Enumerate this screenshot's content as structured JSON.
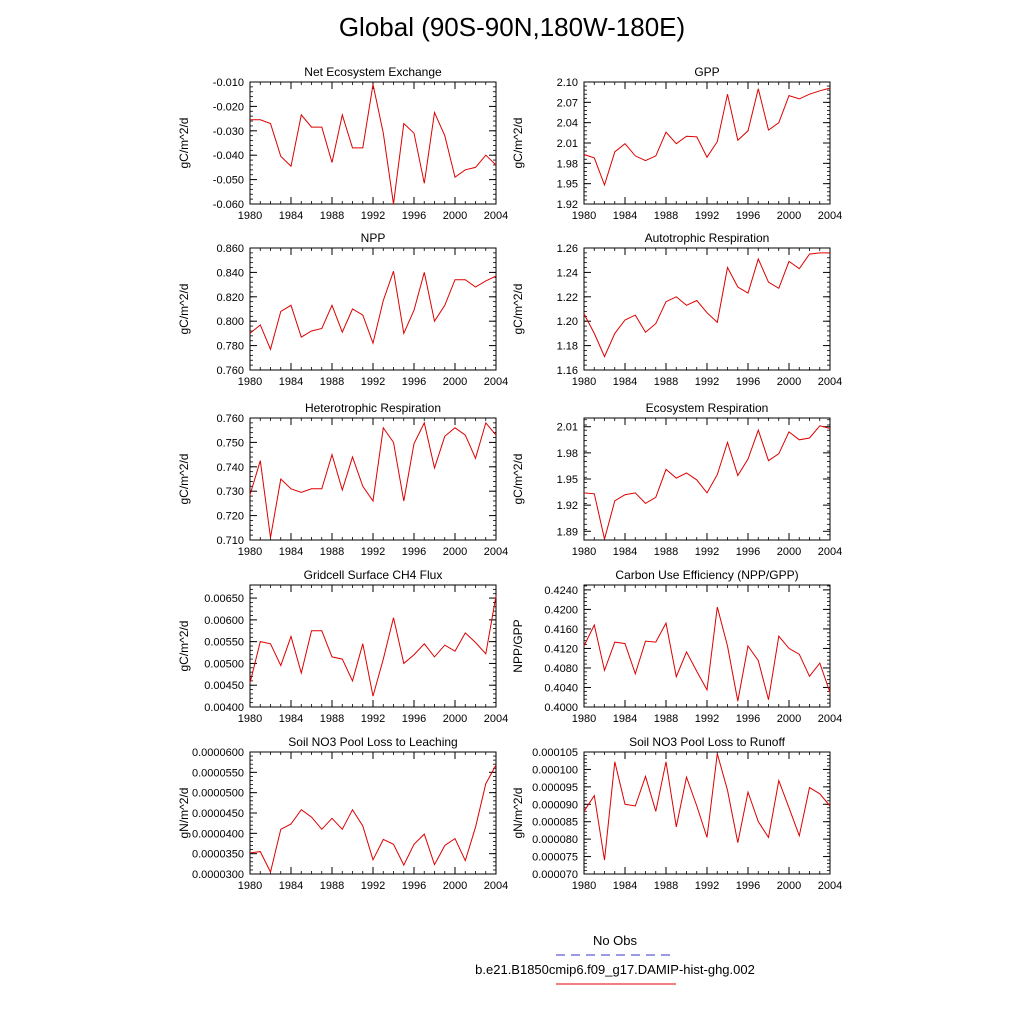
{
  "page": {
    "title": "Global (90S-90N,180W-180E)"
  },
  "legend": {
    "obs_label": "No Obs",
    "obs_color": "#3333cc",
    "model_label": "b.e21.B1850cmip6.f09_g17.DAMIP-hist-ghg.002",
    "model_color": "#dd0000"
  },
  "chart_data": [
    {
      "type": "line",
      "title": "Net Ecosystem Exchange",
      "ylabel": "gC/m^2/d",
      "xlim": [
        1980,
        2004
      ],
      "ylim": [
        -0.06,
        -0.01
      ],
      "xticks": [
        1980,
        1984,
        1988,
        1992,
        1996,
        2000,
        2004
      ],
      "yticks": [
        "-0.060",
        "-0.050",
        "-0.040",
        "-0.030",
        "-0.020",
        "-0.010"
      ],
      "x": [
        1980,
        1981,
        1982,
        1983,
        1984,
        1985,
        1986,
        1987,
        1988,
        1989,
        1990,
        1991,
        1992,
        1993,
        1994,
        1995,
        1996,
        1997,
        1998,
        1999,
        2000,
        2001,
        2002,
        2003,
        2004
      ],
      "series": [
        {
          "values": [
            -0.0255,
            -0.0255,
            -0.027,
            -0.0405,
            -0.0445,
            -0.0235,
            -0.0285,
            -0.0285,
            -0.043,
            -0.0235,
            -0.037,
            -0.037,
            -0.011,
            -0.031,
            -0.06,
            -0.027,
            -0.031,
            -0.0515,
            -0.0225,
            -0.032,
            -0.049,
            -0.046,
            -0.045,
            -0.04,
            -0.044
          ]
        }
      ]
    },
    {
      "type": "line",
      "title": "GPP",
      "ylabel": "gC/m^2/d",
      "xlim": [
        1980,
        2004
      ],
      "ylim": [
        1.92,
        2.1
      ],
      "xticks": [
        1980,
        1984,
        1988,
        1992,
        1996,
        2000,
        2004
      ],
      "yticks": [
        "1.92",
        "1.95",
        "1.98",
        "2.01",
        "2.04",
        "2.07",
        "2.10"
      ],
      "x": [
        1980,
        1981,
        1982,
        1983,
        1984,
        1985,
        1986,
        1987,
        1988,
        1989,
        1990,
        1991,
        1992,
        1993,
        1994,
        1995,
        1996,
        1997,
        1998,
        1999,
        2000,
        2001,
        2002,
        2003,
        2004
      ],
      "series": [
        {
          "values": [
            1.993,
            1.988,
            1.948,
            1.997,
            2.009,
            1.991,
            1.984,
            1.991,
            2.026,
            2.009,
            2.02,
            2.019,
            1.989,
            2.012,
            2.082,
            2.014,
            2.028,
            2.09,
            2.029,
            2.04,
            2.08,
            2.075,
            2.082,
            2.087,
            2.091
          ]
        }
      ]
    },
    {
      "type": "line",
      "title": "NPP",
      "ylabel": "gC/m^2/d",
      "xlim": [
        1980,
        2004
      ],
      "ylim": [
        0.76,
        0.86
      ],
      "xticks": [
        1980,
        1984,
        1988,
        1992,
        1996,
        2000,
        2004
      ],
      "yticks": [
        "0.760",
        "0.780",
        "0.800",
        "0.820",
        "0.840",
        "0.860"
      ],
      "x": [
        1980,
        1981,
        1982,
        1983,
        1984,
        1985,
        1986,
        1987,
        1988,
        1989,
        1990,
        1991,
        1992,
        1993,
        1994,
        1995,
        1996,
        1997,
        1998,
        1999,
        2000,
        2001,
        2002,
        2003,
        2004
      ],
      "series": [
        {
          "values": [
            0.79,
            0.797,
            0.777,
            0.808,
            0.813,
            0.787,
            0.792,
            0.794,
            0.813,
            0.791,
            0.81,
            0.805,
            0.782,
            0.817,
            0.841,
            0.79,
            0.809,
            0.84,
            0.8,
            0.813,
            0.834,
            0.834,
            0.828,
            0.833,
            0.837
          ]
        }
      ]
    },
    {
      "type": "line",
      "title": "Autotrophic Respiration",
      "ylabel": "gC/m^2/d",
      "xlim": [
        1980,
        2004
      ],
      "ylim": [
        1.16,
        1.26
      ],
      "xticks": [
        1980,
        1984,
        1988,
        1992,
        1996,
        2000,
        2004
      ],
      "yticks": [
        "1.16",
        "1.18",
        "1.20",
        "1.22",
        "1.24",
        "1.26"
      ],
      "x": [
        1980,
        1981,
        1982,
        1983,
        1984,
        1985,
        1986,
        1987,
        1988,
        1989,
        1990,
        1991,
        1992,
        1993,
        1994,
        1995,
        1996,
        1997,
        1998,
        1999,
        2000,
        2001,
        2002,
        2003,
        2004
      ],
      "series": [
        {
          "values": [
            1.206,
            1.19,
            1.171,
            1.19,
            1.201,
            1.205,
            1.191,
            1.198,
            1.216,
            1.22,
            1.213,
            1.217,
            1.207,
            1.199,
            1.244,
            1.228,
            1.223,
            1.251,
            1.232,
            1.227,
            1.249,
            1.243,
            1.255,
            1.256,
            1.256
          ]
        }
      ]
    },
    {
      "type": "line",
      "title": "Heterotrophic Respiration",
      "ylabel": "gC/m^2/d",
      "xlim": [
        1980,
        2004
      ],
      "ylim": [
        0.71,
        0.76
      ],
      "xticks": [
        1980,
        1984,
        1988,
        1992,
        1996,
        2000,
        2004
      ],
      "yticks": [
        "0.710",
        "0.720",
        "0.730",
        "0.740",
        "0.750",
        "0.760"
      ],
      "x": [
        1980,
        1981,
        1982,
        1983,
        1984,
        1985,
        1986,
        1987,
        1988,
        1989,
        1990,
        1991,
        1992,
        1993,
        1994,
        1995,
        1996,
        1997,
        1998,
        1999,
        2000,
        2001,
        2002,
        2003,
        2004
      ],
      "series": [
        {
          "values": [
            0.7285,
            0.7425,
            0.711,
            0.735,
            0.731,
            0.7295,
            0.731,
            0.731,
            0.745,
            0.7305,
            0.744,
            0.732,
            0.726,
            0.756,
            0.75,
            0.726,
            0.7495,
            0.758,
            0.7395,
            0.7525,
            0.756,
            0.753,
            0.7435,
            0.758,
            0.753
          ]
        }
      ]
    },
    {
      "type": "line",
      "title": "Ecosystem Respiration",
      "ylabel": "gC/m^2/d",
      "xlim": [
        1980,
        2004
      ],
      "ylim": [
        1.88,
        2.02
      ],
      "xticks": [
        1980,
        1984,
        1988,
        1992,
        1996,
        2000,
        2004
      ],
      "yticks": [
        "1.89",
        "1.92",
        "1.95",
        "1.98",
        "2.01"
      ],
      "x": [
        1980,
        1981,
        1982,
        1983,
        1984,
        1985,
        1986,
        1987,
        1988,
        1989,
        1990,
        1991,
        1992,
        1993,
        1994,
        1995,
        1996,
        1997,
        1998,
        1999,
        2000,
        2001,
        2002,
        2003,
        2004
      ],
      "series": [
        {
          "values": [
            1.934,
            1.933,
            1.881,
            1.925,
            1.932,
            1.934,
            1.922,
            1.929,
            1.961,
            1.951,
            1.957,
            1.949,
            1.934,
            1.955,
            1.992,
            1.954,
            1.973,
            2.006,
            1.971,
            1.979,
            2.004,
            1.995,
            1.997,
            2.011,
            2.008
          ]
        }
      ]
    },
    {
      "type": "line",
      "title": "Gridcell Surface CH4 Flux",
      "ylabel": "gC/m^2/d",
      "xlim": [
        1980,
        2004
      ],
      "ylim": [
        0.004,
        0.0068
      ],
      "xticks": [
        1980,
        1984,
        1988,
        1992,
        1996,
        2000,
        2004
      ],
      "yticks": [
        "0.00400",
        "0.00450",
        "0.00500",
        "0.00550",
        "0.00600",
        "0.00650"
      ],
      "x": [
        1980,
        1981,
        1982,
        1983,
        1984,
        1985,
        1986,
        1987,
        1988,
        1989,
        1990,
        1991,
        1992,
        1993,
        1994,
        1995,
        1996,
        1997,
        1998,
        1999,
        2000,
        2001,
        2002,
        2003,
        2004
      ],
      "series": [
        {
          "values": [
            0.00455,
            0.0055,
            0.00545,
            0.00495,
            0.00562,
            0.00478,
            0.00575,
            0.00575,
            0.00515,
            0.0051,
            0.0046,
            0.00545,
            0.00425,
            0.0051,
            0.00605,
            0.005,
            0.0052,
            0.00545,
            0.00515,
            0.00542,
            0.00528,
            0.0057,
            0.00548,
            0.00522,
            0.00655
          ]
        }
      ]
    },
    {
      "type": "line",
      "title": "Carbon Use Efficiency (NPP/GPP)",
      "ylabel": "NPP/GPP",
      "xlim": [
        1980,
        2004
      ],
      "ylim": [
        0.4,
        0.425
      ],
      "xticks": [
        1980,
        1984,
        1988,
        1992,
        1996,
        2000,
        2004
      ],
      "yticks": [
        "0.4000",
        "0.4040",
        "0.4080",
        "0.4120",
        "0.4160",
        "0.4200",
        "0.4240"
      ],
      "x": [
        1980,
        1981,
        1982,
        1983,
        1984,
        1985,
        1986,
        1987,
        1988,
        1989,
        1990,
        1991,
        1992,
        1993,
        1994,
        1995,
        1996,
        1997,
        1998,
        1999,
        2000,
        2001,
        2002,
        2003,
        2004
      ],
      "series": [
        {
          "values": [
            0.4125,
            0.4168,
            0.4075,
            0.4133,
            0.413,
            0.4068,
            0.4135,
            0.4133,
            0.4172,
            0.4062,
            0.4113,
            0.4073,
            0.4035,
            0.4205,
            0.4125,
            0.4012,
            0.4125,
            0.4095,
            0.4015,
            0.4145,
            0.412,
            0.4108,
            0.4063,
            0.409,
            0.403
          ]
        }
      ]
    },
    {
      "type": "line",
      "title": "Soil NO3 Pool Loss to Leaching",
      "ylabel": "gN/m^2/d",
      "xlim": [
        1980,
        2004
      ],
      "ylim": [
        3e-05,
        6e-05
      ],
      "xticks": [
        1980,
        1984,
        1988,
        1992,
        1996,
        2000,
        2004
      ],
      "yticks": [
        "0.0000300",
        "0.0000350",
        "0.0000400",
        "0.0000450",
        "0.0000500",
        "0.0000550",
        "0.0000600"
      ],
      "x": [
        1980,
        1981,
        1982,
        1983,
        1984,
        1985,
        1986,
        1987,
        1988,
        1989,
        1990,
        1991,
        1992,
        1993,
        1994,
        1995,
        1996,
        1997,
        1998,
        1999,
        2000,
        2001,
        2002,
        2003,
        2004
      ],
      "series": [
        {
          "values": [
            3.52e-05,
            3.55e-05,
            3.05e-05,
            4.1e-05,
            4.23e-05,
            4.58e-05,
            4.4e-05,
            4.1e-05,
            4.37e-05,
            4.1e-05,
            4.58e-05,
            4.18e-05,
            3.35e-05,
            3.85e-05,
            3.73e-05,
            3.22e-05,
            3.73e-05,
            3.98e-05,
            3.23e-05,
            3.7e-05,
            3.87e-05,
            3.33e-05,
            4.15e-05,
            5.22e-05,
            5.68e-05
          ]
        }
      ]
    },
    {
      "type": "line",
      "title": "Soil NO3 Pool Loss to Runoff",
      "ylabel": "gN/m^2/d",
      "xlim": [
        1980,
        2004
      ],
      "ylim": [
        7e-05,
        0.000105
      ],
      "xticks": [
        1980,
        1984,
        1988,
        1992,
        1996,
        2000,
        2004
      ],
      "yticks": [
        "0.000070",
        "0.000075",
        "0.000080",
        "0.000085",
        "0.000090",
        "0.000095",
        "0.000100",
        "0.000105"
      ],
      "x": [
        1980,
        1981,
        1982,
        1983,
        1984,
        1985,
        1986,
        1987,
        1988,
        1989,
        1990,
        1991,
        1992,
        1993,
        1994,
        1995,
        1996,
        1997,
        1998,
        1999,
        2000,
        2001,
        2002,
        2003,
        2004
      ],
      "series": [
        {
          "values": [
            8.8e-05,
            9.25e-05,
            7.4e-05,
            0.0001022,
            9e-05,
            8.95e-05,
            9.8e-05,
            8.8e-05,
            0.0001022,
            8.35e-05,
            9.78e-05,
            8.95e-05,
            8.05e-05,
            0.0001045,
            9.4e-05,
            7.9e-05,
            9.35e-05,
            8.5e-05,
            8.05e-05,
            9.68e-05,
            8.9e-05,
            8.1e-05,
            9.48e-05,
            9.3e-05,
            8.95e-05
          ]
        }
      ]
    }
  ]
}
